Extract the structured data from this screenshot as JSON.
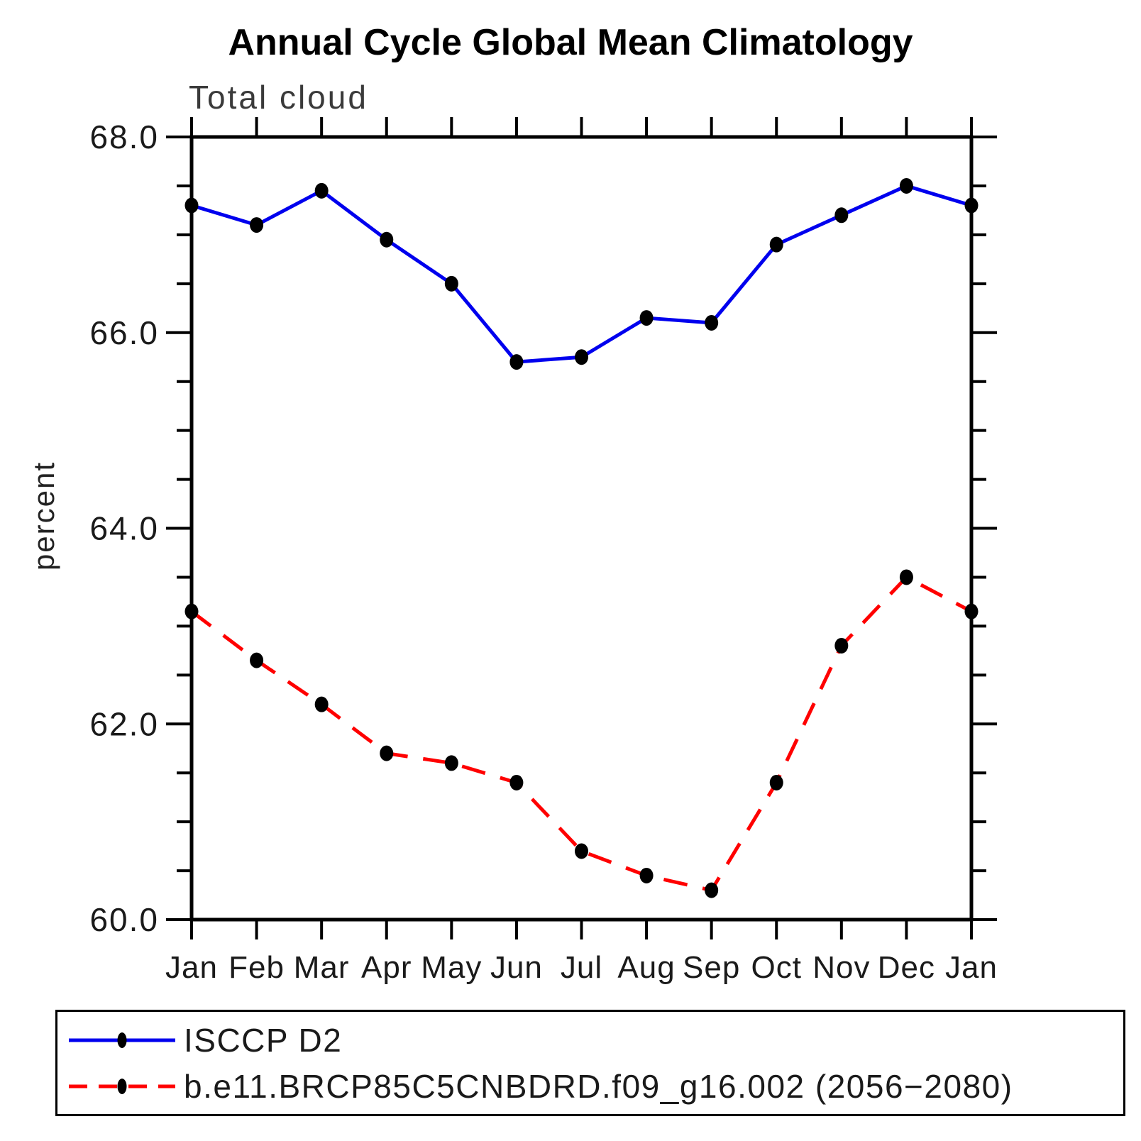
{
  "chart_data": {
    "type": "line",
    "title": "Annual Cycle Global Mean Climatology",
    "subtitle": "Total cloud",
    "ylabel": "percent",
    "categories": [
      "Jan",
      "Feb",
      "Mar",
      "Apr",
      "May",
      "Jun",
      "Jul",
      "Aug",
      "Sep",
      "Oct",
      "Nov",
      "Dec",
      "Jan"
    ],
    "ylim": [
      60.0,
      68.0
    ],
    "ytick_values": [
      60,
      62,
      64,
      66,
      68
    ],
    "ytick_labels": [
      "60.0",
      "62.0",
      "64.0",
      "66.0",
      "68.0"
    ],
    "yminor_step": 0.5,
    "grid": false,
    "legend_position": "bottom-left-box",
    "axis_color": "#000000",
    "marker_color": "#000000",
    "series": [
      {
        "name": "ISCCP D2",
        "color": "#0000ee",
        "style": "solid",
        "marker": "filled-circle",
        "values": [
          67.3,
          67.1,
          67.45,
          66.95,
          66.5,
          65.7,
          65.75,
          66.15,
          66.1,
          66.9,
          67.2,
          67.5,
          67.3
        ]
      },
      {
        "name": "b.e11.BRCP85C5CNBDRD.f09_g16.002 (2056−2080)",
        "color": "#ff0000",
        "style": "dashed",
        "marker": "filled-circle",
        "values": [
          63.15,
          62.65,
          62.2,
          61.7,
          61.6,
          61.4,
          60.7,
          60.45,
          60.3,
          61.4,
          62.8,
          63.5,
          63.15
        ]
      }
    ]
  }
}
